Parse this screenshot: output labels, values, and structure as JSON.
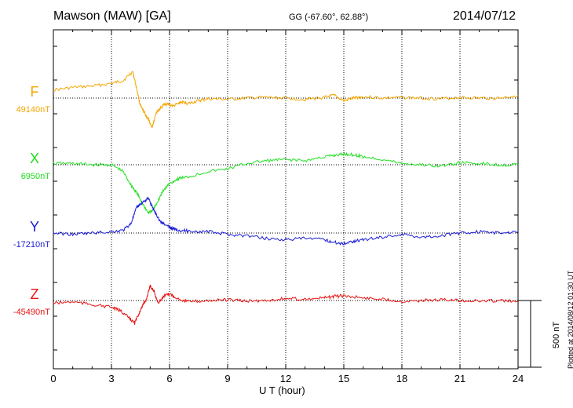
{
  "header": {
    "title": "Mawson (MAW)  [GA]",
    "coords": "GG (-67.60°,  62.88°)",
    "date": "2014/07/12",
    "plotted": "Plotted at 2014/08/12 01:30 UT"
  },
  "chart_data": {
    "type": "line",
    "title": "Mawson (MAW)  [GA]",
    "xlabel": "U T (hour)",
    "xlim": [
      0,
      24
    ],
    "xticks": [
      0,
      3,
      6,
      9,
      12,
      15,
      18,
      21,
      24
    ],
    "xtick_labels": [
      "0",
      "3",
      "6",
      "9",
      "12",
      "15",
      "18",
      "21",
      "24"
    ],
    "grid": true,
    "scale_bar": {
      "label": "500 nT",
      "value": 500
    },
    "series": [
      {
        "name": "F",
        "baseline_label": "49140nT",
        "baseline": 49140,
        "color": "#f5a500",
        "x": [
          0,
          1,
          2,
          3,
          3.6,
          4.1,
          4.3,
          4.5,
          4.7,
          4.9,
          5.1,
          5.3,
          5.5,
          5.8,
          6.2,
          6.6,
          7,
          7.5,
          8,
          9,
          10,
          11,
          12,
          13,
          14,
          14.5,
          15,
          15.5,
          16,
          17,
          18,
          19,
          20,
          21,
          22,
          23,
          24
        ],
        "y": [
          49200,
          49220,
          49230,
          49250,
          49270,
          49340,
          49210,
          49080,
          49030,
          48980,
          48920,
          49030,
          49060,
          49100,
          49080,
          49110,
          49100,
          49120,
          49135,
          49130,
          49140,
          49145,
          49140,
          49130,
          49145,
          49160,
          49120,
          49140,
          49150,
          49140,
          49145,
          49140,
          49135,
          49145,
          49140,
          49140,
          49160
        ]
      },
      {
        "name": "X",
        "baseline_label": "6950nT",
        "baseline": 6950,
        "color": "#22e022",
        "x": [
          0,
          1,
          2,
          3,
          3.6,
          4,
          4.3,
          4.6,
          4.9,
          5.1,
          5.4,
          5.7,
          6,
          6.5,
          7,
          8,
          9,
          10,
          11,
          12,
          13,
          14,
          14.5,
          15,
          15.5,
          16,
          17,
          18,
          19,
          20,
          21,
          22,
          23,
          24
        ],
        "y": [
          6960,
          6960,
          6950,
          6950,
          6900,
          6800,
          6740,
          6660,
          6590,
          6600,
          6680,
          6760,
          6810,
          6850,
          6860,
          6900,
          6920,
          6960,
          6980,
          6990,
          6980,
          7010,
          7020,
          7030,
          7025,
          7010,
          6990,
          6960,
          6950,
          6940,
          6965,
          6960,
          6950,
          6950
        ]
      },
      {
        "name": "Y",
        "baseline_label": "-17210nT",
        "baseline": -17210,
        "color": "#1c1cd8",
        "x": [
          0,
          1,
          2,
          3,
          3.6,
          4,
          4.3,
          4.6,
          4.9,
          5.2,
          5.5,
          5.9,
          6.2,
          6.6,
          7,
          8,
          9,
          10,
          11,
          12,
          13,
          14,
          14.5,
          15,
          15.5,
          16,
          17,
          18,
          19,
          20,
          21,
          22,
          23,
          24
        ],
        "y": [
          -17210,
          -17220,
          -17210,
          -17200,
          -17190,
          -17140,
          -17020,
          -16980,
          -16950,
          -17040,
          -17120,
          -17160,
          -17180,
          -17190,
          -17195,
          -17200,
          -17220,
          -17230,
          -17250,
          -17260,
          -17250,
          -17260,
          -17280,
          -17290,
          -17270,
          -17260,
          -17240,
          -17220,
          -17240,
          -17230,
          -17210,
          -17200,
          -17210,
          -17200
        ]
      },
      {
        "name": "Z",
        "baseline_label": "-45490nT",
        "baseline": -45490,
        "color": "#e81414",
        "x": [
          0,
          1,
          2,
          3,
          3.5,
          3.9,
          4.2,
          4.5,
          4.8,
          5,
          5.2,
          5.4,
          5.7,
          6,
          6.5,
          7,
          8,
          9,
          10,
          11,
          12,
          13,
          14,
          14.5,
          15,
          16,
          17,
          18,
          19,
          20,
          21,
          22,
          23,
          24
        ],
        "y": [
          -45510,
          -45500,
          -45520,
          -45540,
          -45570,
          -45620,
          -45660,
          -45560,
          -45480,
          -45380,
          -45420,
          -45510,
          -45460,
          -45440,
          -45480,
          -45500,
          -45490,
          -45485,
          -45495,
          -45490,
          -45475,
          -45480,
          -45470,
          -45460,
          -45455,
          -45470,
          -45480,
          -45495,
          -45490,
          -45485,
          -45490,
          -45495,
          -45490,
          -45500
        ]
      }
    ]
  }
}
